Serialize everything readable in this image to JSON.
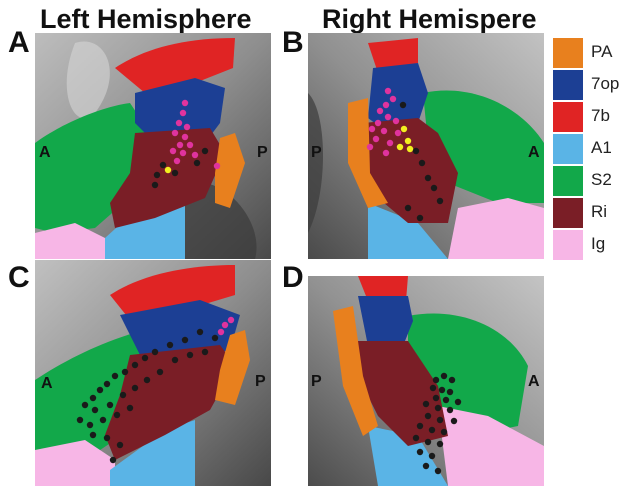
{
  "headers": {
    "left": "Left Hemisphere",
    "right": "Right Hemispere"
  },
  "panels": [
    {
      "id": "A",
      "letter": "A",
      "ant": "A",
      "post": "P"
    },
    {
      "id": "B",
      "letter": "B",
      "ant": "A",
      "post": "P"
    },
    {
      "id": "C",
      "letter": "C",
      "ant": "A",
      "post": "P"
    },
    {
      "id": "D",
      "letter": "D",
      "ant": "A",
      "post": "P"
    }
  ],
  "legend": [
    {
      "label": "PA",
      "color": "#e8801e"
    },
    {
      "label": "7op",
      "color": "#1c3f94"
    },
    {
      "label": "7b",
      "color": "#e02424"
    },
    {
      "label": "A1",
      "color": "#5ab4e6"
    },
    {
      "label": "S2",
      "color": "#12a84a"
    },
    {
      "label": "Ri",
      "color": "#7a1e26"
    },
    {
      "label": "Ig",
      "color": "#f7b6e6"
    }
  ],
  "dot_colors": {
    "black": "#1a1a1a",
    "magenta": "#e0339e",
    "yellow": "#f2f020"
  }
}
